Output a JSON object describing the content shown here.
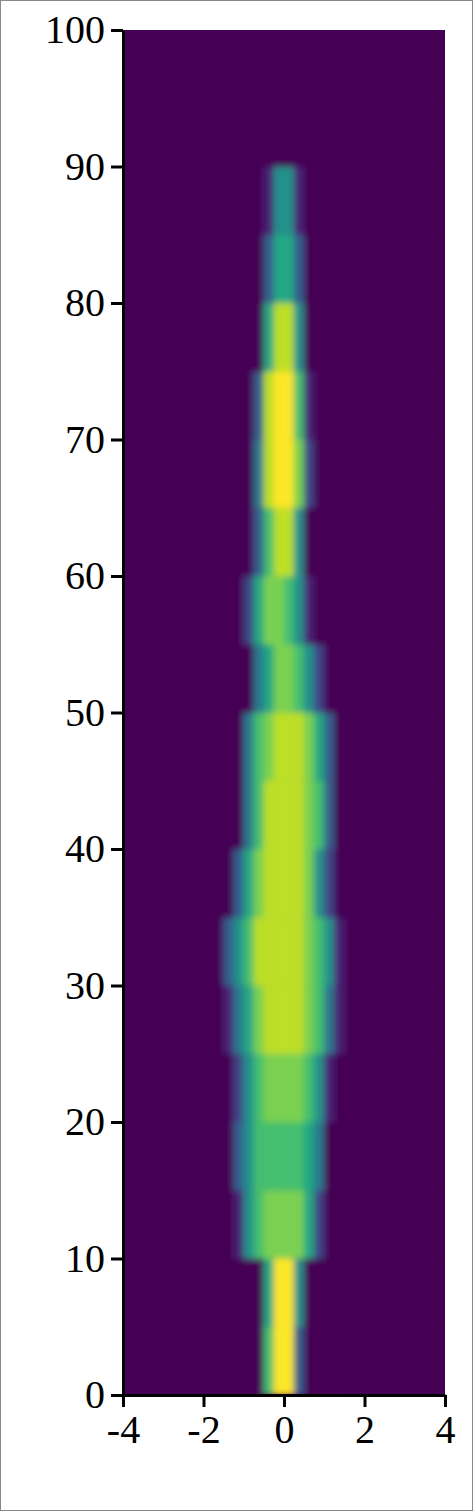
{
  "chart_data": {
    "type": "heatmap",
    "color": "viridis",
    "xlim": [
      -4,
      4
    ],
    "xticks": [
      -4,
      -2,
      0,
      2,
      4
    ],
    "ylim": [
      0,
      100
    ],
    "yticks": [
      0,
      10,
      20,
      30,
      40,
      50,
      60,
      70,
      80,
      90,
      100
    ],
    "x_edges": [
      -4,
      -2,
      -1.5,
      -1.25,
      -1,
      -0.75,
      -0.5,
      -0.25,
      0,
      0.25,
      0.5,
      0.75,
      1,
      1.25,
      1.5,
      2,
      4
    ],
    "y_edges": [
      0,
      5,
      10,
      15,
      20,
      25,
      30,
      35,
      40,
      45,
      50,
      55,
      60,
      65,
      70,
      75,
      80,
      85,
      90,
      95,
      100
    ],
    "z": [
      [
        0,
        0,
        0,
        0,
        0,
        0,
        0.7,
        1,
        1,
        0.3,
        0,
        0,
        0,
        0,
        0,
        0
      ],
      [
        0,
        0,
        0,
        0,
        0,
        0,
        0.6,
        1,
        1,
        0.5,
        0,
        0,
        0,
        0,
        0,
        0
      ],
      [
        0,
        0,
        0,
        0.1,
        0.5,
        0.7,
        0.8,
        0.8,
        0.8,
        0.8,
        0.6,
        0.2,
        0,
        0,
        0,
        0
      ],
      [
        0,
        0,
        0,
        0.3,
        0.5,
        0.7,
        0.7,
        0.7,
        0.7,
        0.7,
        0.6,
        0.4,
        0,
        0,
        0,
        0
      ],
      [
        0,
        0,
        0,
        0.2,
        0.5,
        0.7,
        0.8,
        0.8,
        0.8,
        0.8,
        0.7,
        0.5,
        0.1,
        0,
        0,
        0
      ],
      [
        0,
        0,
        0.1,
        0.4,
        0.6,
        0.8,
        0.9,
        0.9,
        0.9,
        0.9,
        0.8,
        0.7,
        0.4,
        0.1,
        0,
        0
      ],
      [
        0,
        0,
        0.3,
        0.5,
        0.7,
        0.9,
        0.9,
        0.9,
        0.9,
        0.9,
        0.8,
        0.7,
        0.5,
        0.1,
        0,
        0
      ],
      [
        0,
        0,
        0,
        0.3,
        0.6,
        0.8,
        0.9,
        0.9,
        0.9,
        0.9,
        0.8,
        0.5,
        0.2,
        0,
        0,
        0
      ],
      [
        0,
        0,
        0,
        0,
        0.4,
        0.7,
        0.9,
        0.9,
        0.9,
        0.9,
        0.8,
        0.7,
        0.3,
        0,
        0,
        0
      ],
      [
        0,
        0,
        0,
        0,
        0.4,
        0.7,
        0.8,
        0.9,
        0.9,
        0.9,
        0.8,
        0.6,
        0.3,
        0,
        0,
        0
      ],
      [
        0,
        0,
        0,
        0,
        0,
        0.4,
        0.6,
        0.8,
        0.8,
        0.7,
        0.5,
        0.2,
        0,
        0,
        0,
        0
      ],
      [
        0,
        0,
        0,
        0,
        0.2,
        0.6,
        0.8,
        0.8,
        0.7,
        0.5,
        0.1,
        0,
        0,
        0,
        0,
        0
      ],
      [
        0,
        0,
        0,
        0,
        0,
        0.3,
        0.7,
        0.9,
        0.9,
        0.5,
        0,
        0,
        0,
        0,
        0,
        0
      ],
      [
        0,
        0,
        0,
        0,
        0,
        0.4,
        0.9,
        1,
        1,
        0.8,
        0.2,
        0,
        0,
        0,
        0,
        0
      ],
      [
        0,
        0,
        0,
        0,
        0,
        0.3,
        0.9,
        1,
        1,
        0.7,
        0.1,
        0,
        0,
        0,
        0,
        0
      ],
      [
        0,
        0,
        0,
        0,
        0,
        0,
        0.6,
        0.9,
        0.9,
        0.5,
        0,
        0,
        0,
        0,
        0,
        0
      ],
      [
        0,
        0,
        0,
        0,
        0,
        0,
        0.3,
        0.6,
        0.6,
        0.3,
        0,
        0,
        0,
        0,
        0,
        0
      ],
      [
        0,
        0,
        0,
        0,
        0,
        0,
        0.1,
        0.5,
        0.5,
        0.1,
        0,
        0,
        0,
        0,
        0,
        0
      ],
      [
        0,
        0,
        0,
        0,
        0,
        0,
        0,
        0,
        0,
        0,
        0,
        0,
        0,
        0,
        0,
        0
      ],
      [
        0,
        0,
        0,
        0,
        0,
        0,
        0,
        0,
        0,
        0,
        0,
        0,
        0,
        0,
        0,
        0
      ]
    ]
  }
}
